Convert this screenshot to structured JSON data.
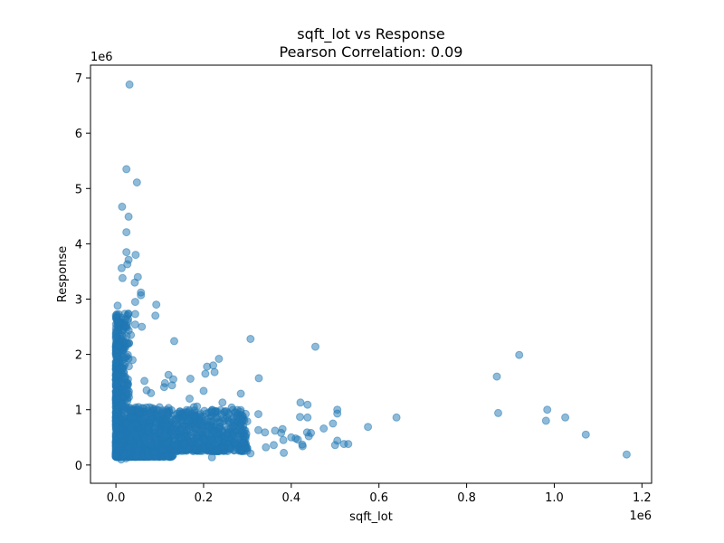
{
  "chart_data": {
    "type": "scatter",
    "title_line1": "sqft_lot vs Response",
    "title_line2": "Pearson Correlation: 0.09",
    "xlabel": "sqft_lot",
    "ylabel": "Response",
    "x_offset_label": "1e6",
    "y_offset_label": "1e6",
    "xlim": [
      -0.058,
      1.222
    ],
    "ylim": [
      -0.33,
      7.23
    ],
    "x_ticks": [
      0.0,
      0.2,
      0.4,
      0.6,
      0.8,
      1.0,
      1.2
    ],
    "x_tick_labels": [
      "0.0",
      "0.2",
      "0.4",
      "0.6",
      "0.8",
      "1.0",
      "1.2"
    ],
    "y_ticks": [
      0,
      1,
      2,
      3,
      4,
      5,
      6,
      7
    ],
    "y_tick_labels": [
      "0",
      "1",
      "2",
      "3",
      "4",
      "5",
      "6",
      "7"
    ],
    "color": "#1f77b4",
    "grid": false,
    "series": [
      {
        "name": "data",
        "points": [
          [
            0.031,
            6.88
          ],
          [
            0.024,
            5.35
          ],
          [
            0.048,
            5.11
          ],
          [
            0.014,
            4.67
          ],
          [
            0.029,
            4.49
          ],
          [
            0.024,
            4.21
          ],
          [
            0.024,
            3.85
          ],
          [
            0.045,
            3.8
          ],
          [
            0.029,
            3.71
          ],
          [
            0.026,
            3.63
          ],
          [
            0.013,
            3.56
          ],
          [
            0.05,
            3.4
          ],
          [
            0.015,
            3.38
          ],
          [
            0.043,
            3.3
          ],
          [
            0.057,
            3.12
          ],
          [
            0.057,
            3.07
          ],
          [
            0.044,
            2.95
          ],
          [
            0.092,
            2.9
          ],
          [
            0.004,
            2.88
          ],
          [
            0.044,
            2.73
          ],
          [
            0.09,
            2.7
          ],
          [
            0.044,
            2.54
          ],
          [
            0.059,
            2.5
          ],
          [
            0.034,
            2.35
          ],
          [
            0.133,
            2.24
          ],
          [
            0.307,
            2.28
          ],
          [
            0.455,
            2.14
          ],
          [
            0.009,
            2.2
          ],
          [
            0.016,
            1.95
          ],
          [
            0.038,
            1.9
          ],
          [
            0.235,
            1.92
          ],
          [
            0.208,
            1.78
          ],
          [
            0.222,
            1.8
          ],
          [
            0.225,
            1.68
          ],
          [
            0.204,
            1.65
          ],
          [
            0.12,
            1.63
          ],
          [
            0.326,
            1.57
          ],
          [
            0.17,
            1.56
          ],
          [
            0.131,
            1.55
          ],
          [
            0.065,
            1.52
          ],
          [
            0.112,
            1.48
          ],
          [
            0.11,
            1.41
          ],
          [
            0.128,
            1.44
          ],
          [
            0.07,
            1.35
          ],
          [
            0.2,
            1.34
          ],
          [
            0.08,
            1.3
          ],
          [
            0.285,
            1.29
          ],
          [
            0.168,
            1.2
          ],
          [
            0.243,
            1.13
          ],
          [
            0.421,
            1.13
          ],
          [
            0.437,
            1.09
          ],
          [
            0.185,
            1.06
          ],
          [
            0.178,
            1.05
          ],
          [
            0.505,
            1.0
          ],
          [
            0.264,
            1.04
          ],
          [
            0.505,
            0.93
          ],
          [
            0.325,
            0.92
          ],
          [
            0.42,
            0.87
          ],
          [
            0.437,
            0.86
          ],
          [
            0.64,
            0.86
          ],
          [
            0.872,
            0.94
          ],
          [
            0.869,
            1.6
          ],
          [
            0.92,
            1.99
          ],
          [
            0.984,
            1.0
          ],
          [
            0.981,
            0.8
          ],
          [
            1.025,
            0.86
          ],
          [
            1.072,
            0.55
          ],
          [
            1.165,
            0.19
          ],
          [
            0.575,
            0.69
          ],
          [
            0.495,
            0.75
          ],
          [
            0.474,
            0.66
          ],
          [
            0.436,
            0.59
          ],
          [
            0.44,
            0.52
          ],
          [
            0.445,
            0.58
          ],
          [
            0.38,
            0.65
          ],
          [
            0.377,
            0.58
          ],
          [
            0.363,
            0.62
          ],
          [
            0.34,
            0.59
          ],
          [
            0.325,
            0.63
          ],
          [
            0.292,
            0.58
          ],
          [
            0.275,
            0.6
          ],
          [
            0.255,
            0.55
          ],
          [
            0.52,
            0.38
          ],
          [
            0.53,
            0.38
          ],
          [
            0.5,
            0.36
          ],
          [
            0.505,
            0.44
          ],
          [
            0.41,
            0.48
          ],
          [
            0.4,
            0.5
          ],
          [
            0.415,
            0.46
          ],
          [
            0.382,
            0.45
          ],
          [
            0.383,
            0.22
          ],
          [
            0.426,
            0.34
          ],
          [
            0.425,
            0.37
          ],
          [
            0.36,
            0.36
          ],
          [
            0.342,
            0.32
          ],
          [
            0.307,
            0.21
          ],
          [
            0.287,
            0.26
          ],
          [
            0.292,
            0.4
          ],
          [
            0.27,
            0.37
          ],
          [
            0.262,
            0.43
          ],
          [
            0.24,
            0.35
          ],
          [
            0.21,
            0.28
          ],
          [
            0.219,
            0.14
          ],
          [
            0.18,
            0.3
          ],
          [
            0.16,
            0.28
          ],
          [
            0.148,
            0.32
          ],
          [
            0.137,
            0.35
          ],
          [
            0.12,
            0.3
          ],
          [
            0.105,
            0.26
          ],
          [
            0.094,
            0.18
          ],
          [
            0.072,
            0.22
          ],
          [
            0.06,
            0.2
          ],
          [
            0.048,
            0.16
          ],
          [
            0.035,
            0.15
          ],
          [
            0.023,
            0.12
          ],
          [
            0.012,
            0.1
          ],
          [
            0.005,
            0.14
          ],
          [
            0.02,
            0.2
          ],
          [
            0.01,
            0.3
          ],
          [
            0.03,
            0.28
          ]
        ]
      }
    ]
  }
}
